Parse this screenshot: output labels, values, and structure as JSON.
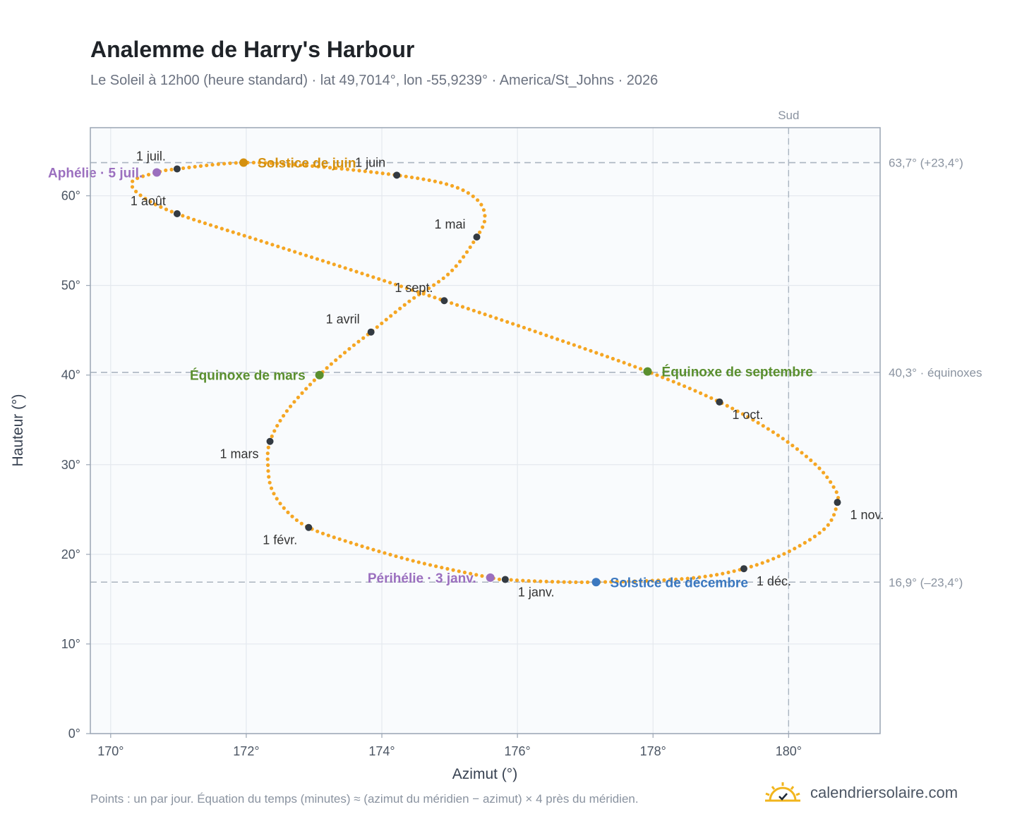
{
  "title": "Analemme de Harry's Harbour",
  "subtitle": "Le Soleil à 12h00 (heure standard) · lat 49,7014°, lon -55,9239° · America/St_Johns · 2026",
  "footer_note": "Points : un par jour. Équation du temps (minutes) ≈ (azimut du méridien − azimut) × 4 près du méridien.",
  "brand": {
    "text": "calendriersolaire.com",
    "icon": "sun-logo-icon",
    "color": "#f2b51c"
  },
  "colors": {
    "curve": "#f5a623",
    "month_marker": "#333a42",
    "solstice_june": "#d4900e",
    "solstice_december": "#3b78c0",
    "equinox": "#5a8f2e",
    "aphelion_perihelion": "#9b6fbf",
    "plot_background": "#f9fbfd",
    "grid": "#e4e8ee",
    "reference_line": "#aab4c0"
  },
  "chart_data": {
    "type": "scatter",
    "title": "Analemme de Harry's Harbour",
    "xlabel": "Azimut (°)",
    "ylabel": "Hauteur (°)",
    "xlim": [
      169.7,
      181.35
    ],
    "ylim": [
      0,
      67.6
    ],
    "xticks": [
      {
        "value": 170,
        "label": "170°"
      },
      {
        "value": 172,
        "label": "172°"
      },
      {
        "value": 174,
        "label": "174°"
      },
      {
        "value": 176,
        "label": "176°"
      },
      {
        "value": 178,
        "label": "178°"
      },
      {
        "value": 180,
        "label": "180°"
      }
    ],
    "yticks": [
      {
        "value": 0,
        "label": "0°"
      },
      {
        "value": 10,
        "label": "10°"
      },
      {
        "value": 20,
        "label": "20°"
      },
      {
        "value": 30,
        "label": "30°"
      },
      {
        "value": 40,
        "label": "40°"
      },
      {
        "value": 50,
        "label": "50°"
      },
      {
        "value": 60,
        "label": "60°"
      }
    ],
    "grid": true,
    "reference_lines": [
      {
        "axis": "y",
        "value": 63.7,
        "label": "63,7° (+23,4°)"
      },
      {
        "axis": "y",
        "value": 40.3,
        "label": "40,3° · équinoxes"
      },
      {
        "axis": "y",
        "value": 16.9,
        "label": "16,9° (–23,4°)"
      },
      {
        "axis": "x",
        "value": 180,
        "label": "Sud"
      }
    ],
    "analemma_path": [
      {
        "x": 175.82,
        "y": 17.2
      },
      {
        "x": 175.6,
        "y": 17.4
      },
      {
        "x": 174.5,
        "y": 19.2
      },
      {
        "x": 173.5,
        "y": 21.4
      },
      {
        "x": 172.92,
        "y": 23.0
      },
      {
        "x": 172.6,
        "y": 24.8
      },
      {
        "x": 172.38,
        "y": 27.2
      },
      {
        "x": 172.32,
        "y": 29.8
      },
      {
        "x": 172.35,
        "y": 32.6
      },
      {
        "x": 172.6,
        "y": 36.0
      },
      {
        "x": 173.08,
        "y": 40.0
      },
      {
        "x": 173.5,
        "y": 42.8
      },
      {
        "x": 173.84,
        "y": 44.8
      },
      {
        "x": 174.4,
        "y": 48.2
      },
      {
        "x": 175.0,
        "y": 51.4
      },
      {
        "x": 175.4,
        "y": 55.4
      },
      {
        "x": 175.52,
        "y": 57.6
      },
      {
        "x": 175.4,
        "y": 59.6
      },
      {
        "x": 175.0,
        "y": 61.2
      },
      {
        "x": 174.22,
        "y": 62.3
      },
      {
        "x": 173.0,
        "y": 63.3
      },
      {
        "x": 171.96,
        "y": 63.7
      },
      {
        "x": 170.98,
        "y": 63.0
      },
      {
        "x": 170.68,
        "y": 62.6
      },
      {
        "x": 170.32,
        "y": 61.6
      },
      {
        "x": 170.45,
        "y": 60.0
      },
      {
        "x": 170.98,
        "y": 58.0
      },
      {
        "x": 172.2,
        "y": 55.0
      },
      {
        "x": 173.6,
        "y": 51.6
      },
      {
        "x": 174.92,
        "y": 48.3
      },
      {
        "x": 176.4,
        "y": 44.5
      },
      {
        "x": 177.92,
        "y": 40.4
      },
      {
        "x": 178.98,
        "y": 37.0
      },
      {
        "x": 179.8,
        "y": 33.5
      },
      {
        "x": 180.4,
        "y": 30.0
      },
      {
        "x": 180.68,
        "y": 27.3
      },
      {
        "x": 180.72,
        "y": 25.8
      },
      {
        "x": 180.55,
        "y": 23.0
      },
      {
        "x": 180.0,
        "y": 20.3
      },
      {
        "x": 179.34,
        "y": 18.4
      },
      {
        "x": 178.5,
        "y": 17.3
      },
      {
        "x": 177.16,
        "y": 16.9
      },
      {
        "x": 176.3,
        "y": 17.0
      },
      {
        "x": 175.82,
        "y": 17.2
      }
    ],
    "month_markers": [
      {
        "label": "1 janv.",
        "x": 175.82,
        "y": 17.2,
        "anchor": "below-right"
      },
      {
        "label": "1 févr.",
        "x": 172.92,
        "y": 23.0,
        "anchor": "below-left"
      },
      {
        "label": "1 mars",
        "x": 172.35,
        "y": 32.6,
        "anchor": "below-left"
      },
      {
        "label": "1 avril",
        "x": 173.84,
        "y": 44.8,
        "anchor": "above-left"
      },
      {
        "label": "1 mai",
        "x": 175.4,
        "y": 55.4,
        "anchor": "above-left"
      },
      {
        "label": "1 juin",
        "x": 174.22,
        "y": 62.3,
        "anchor": "above-left"
      },
      {
        "label": "1 juil.",
        "x": 170.98,
        "y": 63.0,
        "anchor": "above-left"
      },
      {
        "label": "1 août",
        "x": 170.98,
        "y": 58.0,
        "anchor": "above-left"
      },
      {
        "label": "1 sept.",
        "x": 174.92,
        "y": 48.3,
        "anchor": "above-left"
      },
      {
        "label": "1 oct.",
        "x": 178.98,
        "y": 37.0,
        "anchor": "below-right"
      },
      {
        "label": "1 nov.",
        "x": 180.72,
        "y": 25.8,
        "anchor": "below-right"
      },
      {
        "label": "1 déc.",
        "x": 179.34,
        "y": 18.4,
        "anchor": "below-right"
      }
    ],
    "events": [
      {
        "label": "Solstice de juin",
        "x": 171.96,
        "y": 63.7,
        "color": "#d4900e",
        "side": "right"
      },
      {
        "label": "Solstice de décembre",
        "x": 177.16,
        "y": 16.9,
        "color": "#3b78c0",
        "side": "right"
      },
      {
        "label": "Équinoxe de mars",
        "x": 173.08,
        "y": 40.0,
        "color": "#5a8f2e",
        "side": "left"
      },
      {
        "label": "Équinoxe de septembre",
        "x": 177.92,
        "y": 40.4,
        "color": "#5a8f2e",
        "side": "right"
      },
      {
        "label": "Aphélie · 5 juil.",
        "x": 170.68,
        "y": 62.6,
        "color": "#9b6fbf",
        "side": "left"
      },
      {
        "label": "Périhélie · 3 janv.",
        "x": 175.6,
        "y": 17.4,
        "color": "#9b6fbf",
        "side": "left"
      }
    ]
  }
}
